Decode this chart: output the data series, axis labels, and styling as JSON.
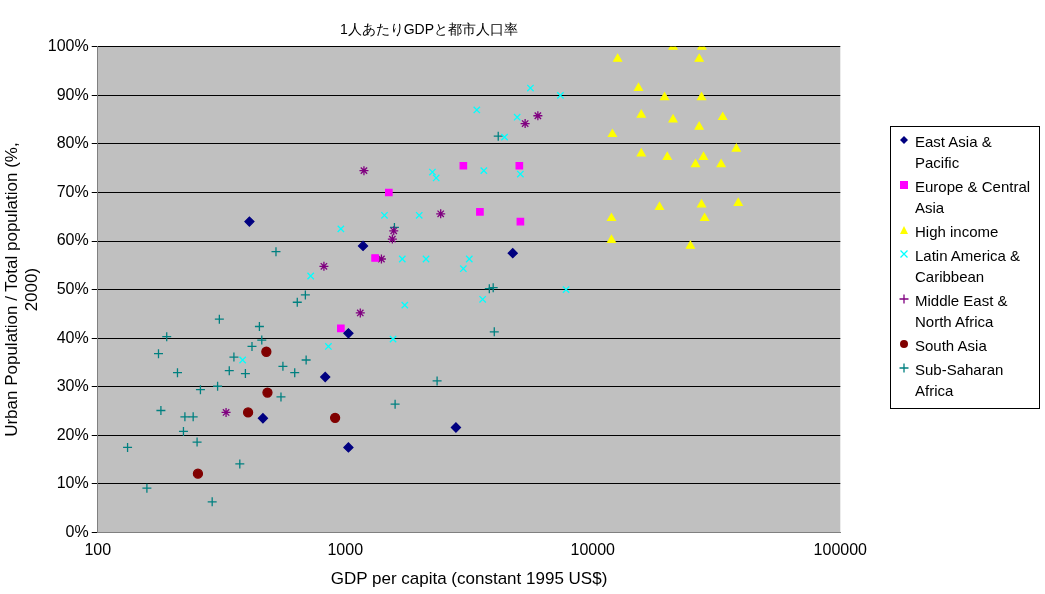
{
  "chart_data": {
    "type": "scatter",
    "title": "1人あたりGDPと都市人口率",
    "xlabel": "GDP per capita (constant 1995 US$)",
    "ylabel": "Urban Population / Total population (%, 2000)",
    "log": "x",
    "grid": "y",
    "legend": "right",
    "xlim": [
      100,
      100000
    ],
    "xticks": [
      100,
      1000,
      10000,
      100000
    ],
    "ylim": [
      0,
      100
    ],
    "yticks": [
      {
        "value": 0,
        "label": "0%"
      },
      {
        "value": 10,
        "label": "10%"
      },
      {
        "value": 20,
        "label": "20%"
      },
      {
        "value": 30,
        "label": "30%"
      },
      {
        "value": 40,
        "label": "40%"
      },
      {
        "value": 50,
        "label": "50%"
      },
      {
        "value": 60,
        "label": "60%"
      },
      {
        "value": 70,
        "label": "70%"
      },
      {
        "value": 80,
        "label": "80%"
      },
      {
        "value": 90,
        "label": "90%"
      },
      {
        "value": 100,
        "label": "100%"
      }
    ],
    "series": [
      {
        "name": "East Asia & Pacific",
        "color": "#000080",
        "marker": "diamond",
        "x": [
          410,
          1030,
          1180,
          830,
          465,
          1030,
          2800,
          4750
        ],
        "values": [
          64,
          41,
          59,
          32,
          23.5,
          17.5,
          21.6,
          57.5
        ]
      },
      {
        "name": "Europe & Central Asia",
        "color": "#ff00ff",
        "marker": "square",
        "x": [
          960,
          1500,
          1320,
          3000,
          3500,
          5100,
          5050
        ],
        "values": [
          42,
          70,
          56.5,
          75.5,
          66,
          64,
          75.5
        ]
      },
      {
        "name": "High income",
        "color": "#ffff00",
        "marker": "triangle",
        "x": [
          21100,
          27600,
          12600,
          26900,
          15300,
          19500,
          27500,
          15700,
          21100,
          33500,
          26900,
          12000,
          38000,
          15700,
          20000,
          28000,
          26000,
          33000,
          18600,
          27500,
          38700,
          11900,
          28300,
          11900,
          24800
        ],
        "values": [
          100,
          100,
          97.5,
          97.5,
          91.5,
          89.6,
          89.6,
          86,
          85,
          85.5,
          83.5,
          82,
          79,
          78,
          77.3,
          77.3,
          75.8,
          75.8,
          67,
          67.5,
          67.8,
          64.7,
          64.7,
          60.2,
          59
        ]
      },
      {
        "name": "Latin America & Caribbean",
        "color": "#00ffff",
        "marker": "x",
        "x": [
          385,
          855,
          725,
          960,
          1440,
          1990,
          2250,
          2330,
          3630,
          5100,
          1700,
          2120,
          3170,
          3000,
          3590,
          7800,
          1740,
          1560,
          4400,
          4950,
          3400,
          5600,
          7400
        ],
        "values": [
          35.5,
          38.3,
          52.8,
          62.5,
          65.3,
          65.3,
          74.2,
          73,
          74.5,
          73.8,
          56.3,
          56.3,
          56.3,
          54.3,
          48,
          50,
          46.8,
          39.8,
          81.4,
          85.5,
          87,
          91.5,
          90
        ]
      },
      {
        "name": "Middle East & North Africa",
        "color": "#800080",
        "marker": "cross",
        "x": [
          330,
          820,
          1190,
          2430,
          1550,
          1570,
          1400,
          1150,
          5330,
          6000
        ],
        "values": [
          24.7,
          54.8,
          74.5,
          65.6,
          60.4,
          62.1,
          56.3,
          45.2,
          84.2,
          85.8
        ]
      },
      {
        "name": "South Asia",
        "color": "#800000",
        "marker": "circle",
        "x": [
          480,
          485,
          405,
          910,
          254
        ],
        "values": [
          37.2,
          28.8,
          24.7,
          23.6,
          12.1
        ]
      },
      {
        "name": "Sub-Saharan Africa",
        "color": "#008080",
        "marker": "plus",
        "x": [
          525,
          690,
          640,
          310,
          450,
          190,
          460,
          420,
          176,
          355,
          340,
          395,
          695,
          560,
          625,
          210,
          260,
          305,
          550,
          180,
          225,
          243,
          222,
          252,
          132,
          375,
          158,
          290,
          1580,
          4150,
          3960,
          3820,
          4000,
          2350,
          1590
        ],
        "values": [
          57.8,
          48.9,
          47.4,
          43.9,
          42.4,
          40.3,
          39.6,
          38.3,
          36.8,
          36.1,
          33.3,
          32.7,
          35.5,
          34.2,
          32.9,
          32.9,
          29.4,
          30.1,
          27.9,
          25.1,
          23.8,
          23.8,
          20.8,
          18.6,
          17.5,
          14.1,
          9.1,
          6.3,
          62.8,
          81.6,
          50.4,
          50.2,
          41.3,
          31.2,
          26.4
        ]
      }
    ]
  }
}
